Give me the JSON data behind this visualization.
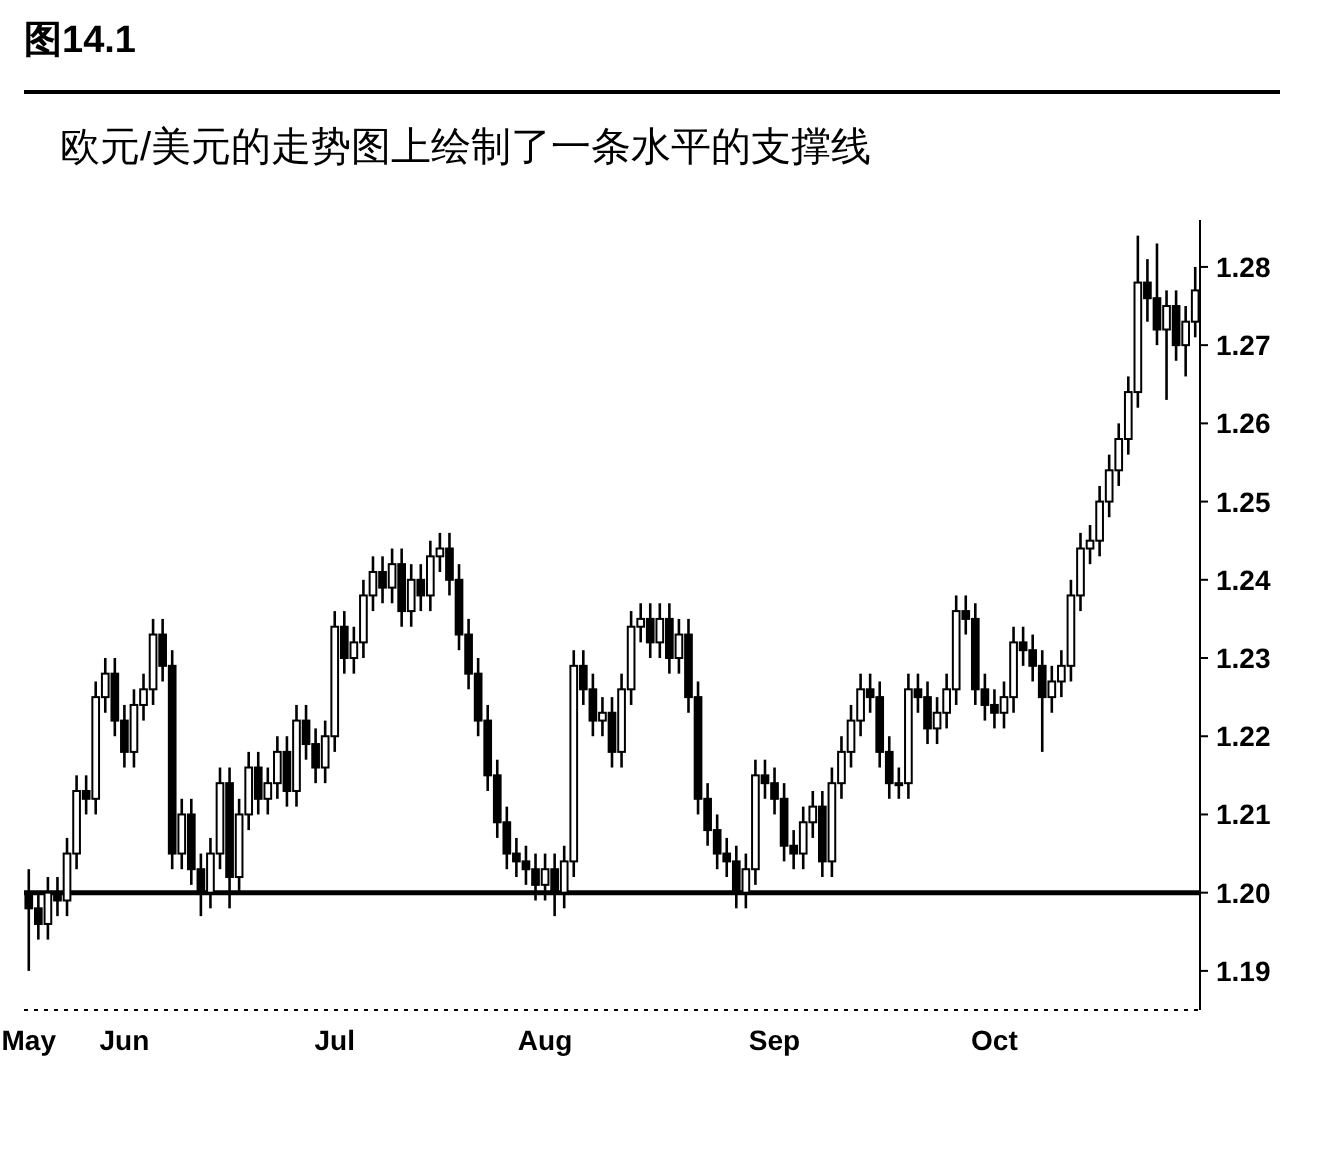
{
  "chart_data": {
    "type": "candlestick",
    "title": "图14.1",
    "subtitle": "欧元/美元的走势图上绘制了一条水平的支撑线",
    "categories": [
      "May",
      null,
      null,
      null,
      null,
      null,
      null,
      null,
      null,
      null,
      "Jun",
      null,
      null,
      null,
      null,
      null,
      null,
      null,
      null,
      null,
      null,
      null,
      null,
      null,
      null,
      null,
      null,
      null,
      null,
      null,
      null,
      null,
      "Jul",
      null,
      null,
      null,
      null,
      null,
      null,
      null,
      null,
      null,
      null,
      null,
      null,
      null,
      null,
      null,
      null,
      null,
      null,
      null,
      null,
      null,
      "Aug",
      null,
      null,
      null,
      null,
      null,
      null,
      null,
      null,
      null,
      null,
      null,
      null,
      null,
      null,
      null,
      null,
      null,
      null,
      null,
      null,
      null,
      null,
      null,
      "Sep",
      null,
      null,
      null,
      null,
      null,
      null,
      null,
      null,
      null,
      null,
      null,
      null,
      null,
      null,
      null,
      null,
      null,
      null,
      null,
      null,
      null,
      null,
      "Oct",
      null,
      null,
      null,
      null,
      null,
      null,
      null,
      null,
      null,
      null,
      null,
      null,
      null,
      null,
      null,
      null,
      null,
      null,
      null,
      null,
      null
    ],
    "ohlc": [
      [
        1.2,
        1.203,
        1.19,
        1.198
      ],
      [
        1.198,
        1.2,
        1.194,
        1.196
      ],
      [
        1.196,
        1.202,
        1.194,
        1.2
      ],
      [
        1.2,
        1.202,
        1.197,
        1.199
      ],
      [
        1.199,
        1.207,
        1.197,
        1.205
      ],
      [
        1.205,
        1.215,
        1.203,
        1.213
      ],
      [
        1.213,
        1.215,
        1.21,
        1.212
      ],
      [
        1.212,
        1.227,
        1.21,
        1.225
      ],
      [
        1.225,
        1.23,
        1.223,
        1.228
      ],
      [
        1.228,
        1.23,
        1.22,
        1.222
      ],
      [
        1.222,
        1.224,
        1.216,
        1.218
      ],
      [
        1.218,
        1.226,
        1.216,
        1.224
      ],
      [
        1.224,
        1.228,
        1.222,
        1.226
      ],
      [
        1.226,
        1.235,
        1.224,
        1.233
      ],
      [
        1.233,
        1.235,
        1.227,
        1.229
      ],
      [
        1.229,
        1.231,
        1.203,
        1.205
      ],
      [
        1.205,
        1.212,
        1.203,
        1.21
      ],
      [
        1.21,
        1.212,
        1.201,
        1.203
      ],
      [
        1.203,
        1.205,
        1.197,
        1.2
      ],
      [
        1.2,
        1.207,
        1.198,
        1.205
      ],
      [
        1.205,
        1.216,
        1.203,
        1.214
      ],
      [
        1.214,
        1.216,
        1.198,
        1.202
      ],
      [
        1.202,
        1.212,
        1.2,
        1.21
      ],
      [
        1.21,
        1.218,
        1.208,
        1.216
      ],
      [
        1.216,
        1.218,
        1.21,
        1.212
      ],
      [
        1.212,
        1.216,
        1.21,
        1.214
      ],
      [
        1.214,
        1.22,
        1.212,
        1.218
      ],
      [
        1.218,
        1.22,
        1.211,
        1.213
      ],
      [
        1.213,
        1.224,
        1.211,
        1.222
      ],
      [
        1.222,
        1.224,
        1.217,
        1.219
      ],
      [
        1.219,
        1.221,
        1.214,
        1.216
      ],
      [
        1.216,
        1.222,
        1.214,
        1.22
      ],
      [
        1.22,
        1.236,
        1.218,
        1.234
      ],
      [
        1.234,
        1.236,
        1.228,
        1.23
      ],
      [
        1.23,
        1.234,
        1.228,
        1.232
      ],
      [
        1.232,
        1.24,
        1.23,
        1.238
      ],
      [
        1.238,
        1.243,
        1.236,
        1.241
      ],
      [
        1.241,
        1.243,
        1.237,
        1.239
      ],
      [
        1.239,
        1.244,
        1.237,
        1.242
      ],
      [
        1.242,
        1.244,
        1.234,
        1.236
      ],
      [
        1.236,
        1.242,
        1.234,
        1.24
      ],
      [
        1.24,
        1.242,
        1.236,
        1.238
      ],
      [
        1.238,
        1.245,
        1.236,
        1.243
      ],
      [
        1.243,
        1.246,
        1.241,
        1.244
      ],
      [
        1.244,
        1.246,
        1.238,
        1.24
      ],
      [
        1.24,
        1.242,
        1.231,
        1.233
      ],
      [
        1.233,
        1.235,
        1.226,
        1.228
      ],
      [
        1.228,
        1.23,
        1.22,
        1.222
      ],
      [
        1.222,
        1.224,
        1.213,
        1.215
      ],
      [
        1.215,
        1.217,
        1.207,
        1.209
      ],
      [
        1.209,
        1.211,
        1.203,
        1.205
      ],
      [
        1.205,
        1.207,
        1.202,
        1.204
      ],
      [
        1.204,
        1.206,
        1.201,
        1.203
      ],
      [
        1.203,
        1.205,
        1.199,
        1.201
      ],
      [
        1.201,
        1.205,
        1.199,
        1.203
      ],
      [
        1.203,
        1.205,
        1.197,
        1.2
      ],
      [
        1.2,
        1.206,
        1.198,
        1.204
      ],
      [
        1.204,
        1.231,
        1.202,
        1.229
      ],
      [
        1.229,
        1.231,
        1.224,
        1.226
      ],
      [
        1.226,
        1.228,
        1.22,
        1.222
      ],
      [
        1.222,
        1.225,
        1.22,
        1.223
      ],
      [
        1.223,
        1.225,
        1.216,
        1.218
      ],
      [
        1.218,
        1.228,
        1.216,
        1.226
      ],
      [
        1.226,
        1.236,
        1.224,
        1.234
      ],
      [
        1.234,
        1.237,
        1.232,
        1.235
      ],
      [
        1.235,
        1.237,
        1.23,
        1.232
      ],
      [
        1.232,
        1.237,
        1.23,
        1.235
      ],
      [
        1.235,
        1.237,
        1.228,
        1.23
      ],
      [
        1.23,
        1.235,
        1.228,
        1.233
      ],
      [
        1.233,
        1.235,
        1.223,
        1.225
      ],
      [
        1.225,
        1.227,
        1.21,
        1.212
      ],
      [
        1.212,
        1.214,
        1.206,
        1.208
      ],
      [
        1.208,
        1.21,
        1.203,
        1.205
      ],
      [
        1.205,
        1.207,
        1.202,
        1.204
      ],
      [
        1.204,
        1.206,
        1.198,
        1.2
      ],
      [
        1.2,
        1.205,
        1.198,
        1.203
      ],
      [
        1.203,
        1.217,
        1.201,
        1.215
      ],
      [
        1.215,
        1.217,
        1.212,
        1.214
      ],
      [
        1.214,
        1.216,
        1.21,
        1.212
      ],
      [
        1.212,
        1.214,
        1.204,
        1.206
      ],
      [
        1.206,
        1.208,
        1.203,
        1.205
      ],
      [
        1.205,
        1.211,
        1.203,
        1.209
      ],
      [
        1.209,
        1.213,
        1.207,
        1.211
      ],
      [
        1.211,
        1.213,
        1.202,
        1.204
      ],
      [
        1.204,
        1.216,
        1.202,
        1.214
      ],
      [
        1.214,
        1.22,
        1.212,
        1.218
      ],
      [
        1.218,
        1.224,
        1.216,
        1.222
      ],
      [
        1.222,
        1.228,
        1.22,
        1.226
      ],
      [
        1.226,
        1.228,
        1.223,
        1.225
      ],
      [
        1.225,
        1.227,
        1.216,
        1.218
      ],
      [
        1.218,
        1.22,
        1.212,
        1.214
      ],
      [
        1.214,
        1.216,
        1.212,
        1.214
      ],
      [
        1.214,
        1.228,
        1.212,
        1.226
      ],
      [
        1.226,
        1.228,
        1.223,
        1.225
      ],
      [
        1.225,
        1.227,
        1.219,
        1.221
      ],
      [
        1.221,
        1.225,
        1.219,
        1.223
      ],
      [
        1.223,
        1.228,
        1.221,
        1.226
      ],
      [
        1.226,
        1.238,
        1.224,
        1.236
      ],
      [
        1.236,
        1.238,
        1.233,
        1.235
      ],
      [
        1.235,
        1.237,
        1.224,
        1.226
      ],
      [
        1.226,
        1.228,
        1.222,
        1.224
      ],
      [
        1.224,
        1.226,
        1.221,
        1.223
      ],
      [
        1.223,
        1.227,
        1.221,
        1.225
      ],
      [
        1.225,
        1.234,
        1.223,
        1.232
      ],
      [
        1.232,
        1.234,
        1.229,
        1.231
      ],
      [
        1.231,
        1.233,
        1.227,
        1.229
      ],
      [
        1.229,
        1.231,
        1.218,
        1.225
      ],
      [
        1.225,
        1.229,
        1.223,
        1.227
      ],
      [
        1.227,
        1.231,
        1.225,
        1.229
      ],
      [
        1.229,
        1.24,
        1.227,
        1.238
      ],
      [
        1.238,
        1.246,
        1.236,
        1.244
      ],
      [
        1.244,
        1.247,
        1.242,
        1.245
      ],
      [
        1.245,
        1.252,
        1.243,
        1.25
      ],
      [
        1.25,
        1.256,
        1.248,
        1.254
      ],
      [
        1.254,
        1.26,
        1.252,
        1.258
      ],
      [
        1.258,
        1.266,
        1.256,
        1.264
      ],
      [
        1.264,
        1.284,
        1.262,
        1.278
      ],
      [
        1.278,
        1.281,
        1.273,
        1.276
      ],
      [
        1.276,
        1.283,
        1.27,
        1.272
      ],
      [
        1.272,
        1.277,
        1.263,
        1.275
      ],
      [
        1.275,
        1.277,
        1.268,
        1.27
      ],
      [
        1.27,
        1.275,
        1.266,
        1.273
      ],
      [
        1.273,
        1.28,
        1.271,
        1.277
      ]
    ],
    "ylim": [
      1.185,
      1.286
    ],
    "yticks": [
      1.19,
      {
        "value": 1.2,
        "label": "1.20"
      },
      1.21,
      1.22,
      1.23,
      1.24,
      1.25,
      1.26,
      1.27,
      1.28
    ],
    "ref_lines": [
      {
        "axis": "y",
        "value": 1.2,
        "color": "#000000"
      }
    ]
  }
}
